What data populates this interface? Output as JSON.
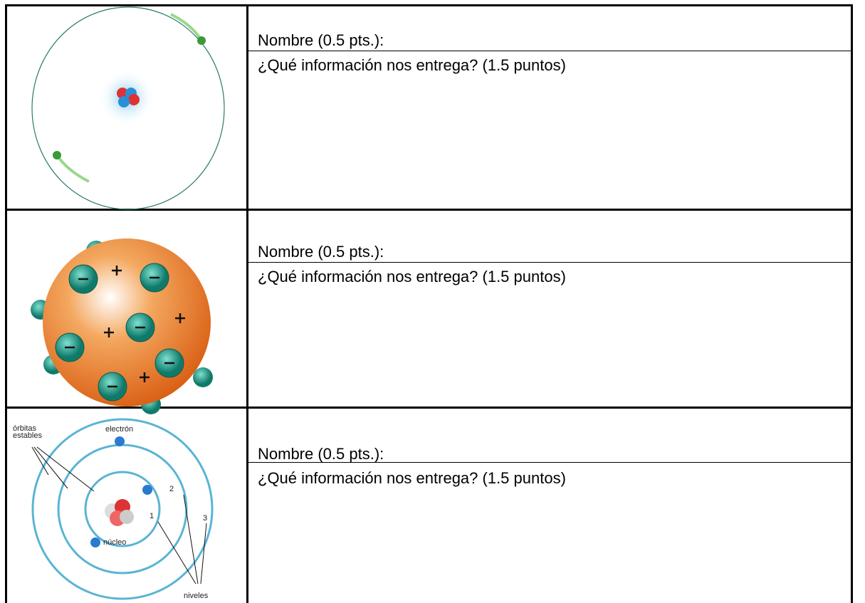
{
  "table": {
    "rows": [
      {
        "name_label": "Nombre (0.5 pts.):",
        "question": "¿Qué información nos entrega? (1.5 puntos)"
      },
      {
        "name_label": "Nombre (0.5 pts.):",
        "question": "¿Qué información nos entrega? (1.5 puntos)"
      },
      {
        "name_label": "Nombre (0.5 pts.):",
        "question": "¿Qué información nos entrega? (1.5 puntos)",
        "image_labels": {
          "orbits": "órbitas\nestables",
          "electron": "electrón",
          "nucleus": "núcleo",
          "level_1": "1",
          "level_2": "2",
          "level_3": "3",
          "levels": "niveles"
        }
      }
    ]
  }
}
